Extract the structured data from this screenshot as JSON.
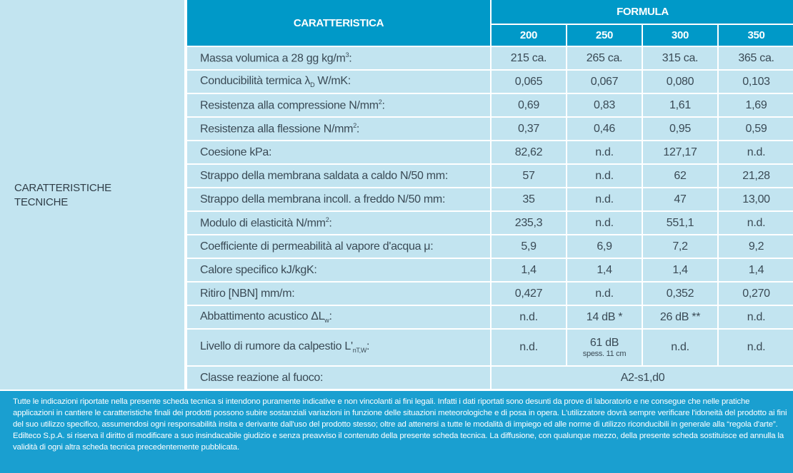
{
  "section_label": "CARATTERISTICHE TECNICHE",
  "header": {
    "characteristic": "CARATTERISTICA",
    "formula": "FORMULA",
    "columns": [
      "200",
      "250",
      "300",
      "350"
    ]
  },
  "rows": [
    {
      "label": "Massa volumica a 28 gg kg/m",
      "sup": "3",
      "sub": "",
      "tail": ":",
      "values": [
        "215 ca.",
        "265 ca.",
        "315 ca.",
        "365 ca."
      ]
    },
    {
      "label": "Conducibilità termica λ",
      "sup": "",
      "sub": "D",
      "tail": " W/mK:",
      "values": [
        "0,065",
        "0,067",
        "0,080",
        "0,103"
      ]
    },
    {
      "label": "Resistenza alla compressione N/mm",
      "sup": "2",
      "sub": "",
      "tail": ":",
      "values": [
        "0,69",
        "0,83",
        "1,61",
        "1,69"
      ]
    },
    {
      "label": "Resistenza alla flessione N/mm",
      "sup": "2",
      "sub": "",
      "tail": ":",
      "values": [
        "0,37",
        "0,46",
        "0,95",
        "0,59"
      ]
    },
    {
      "label": "Coesione kPa:",
      "sup": "",
      "sub": "",
      "tail": "",
      "values": [
        "82,62",
        "n.d.",
        "127,17",
        "n.d."
      ]
    },
    {
      "label": "Strappo della membrana saldata a caldo N/50 mm:",
      "sup": "",
      "sub": "",
      "tail": "",
      "values": [
        "57",
        "n.d.",
        "62",
        "21,28"
      ]
    },
    {
      "label": "Strappo della membrana incoll. a freddo N/50 mm:",
      "sup": "",
      "sub": "",
      "tail": "",
      "values": [
        "35",
        "n.d.",
        "47",
        "13,00"
      ]
    },
    {
      "label": "Modulo di elasticità N/mm",
      "sup": "2",
      "sub": "",
      "tail": ":",
      "values": [
        "235,3",
        "n.d.",
        "551,1",
        "n.d."
      ]
    },
    {
      "label": "Coefficiente di permeabilità al vapore d'acqua μ:",
      "sup": "",
      "sub": "",
      "tail": "",
      "values": [
        "5,9",
        "6,9",
        "7,2",
        "9,2"
      ]
    },
    {
      "label": "Calore specifico kJ/kgK:",
      "sup": "",
      "sub": "",
      "tail": "",
      "values": [
        "1,4",
        "1,4",
        "1,4",
        "1,4"
      ]
    },
    {
      "label": "Ritiro [NBN] mm/m:",
      "sup": "",
      "sub": "",
      "tail": "",
      "values": [
        "0,427",
        "n.d.",
        "0,352",
        "0,270"
      ]
    },
    {
      "label": "Abbattimento acustico ΔL",
      "sup": "",
      "sub": "w",
      "tail": ":",
      "values": [
        "n.d.",
        "14 dB *",
        "26 dB **",
        "n.d."
      ]
    },
    {
      "label": "Livello di rumore da calpestio L'",
      "sup": "",
      "sub": "nT,W",
      "tail": ":",
      "values": [
        "n.d.",
        "61 dB",
        "n.d.",
        "n.d."
      ],
      "note": "spess. 11 cm"
    }
  ],
  "fire": {
    "label": "Classe reazione al fuoco:",
    "value": "A2-s1,d0"
  },
  "footer": "Tutte le indicazioni riportate nella presente scheda tecnica si intendono puramente indicative e non vincolanti ai fini legali. Infatti i dati riportati sono desunti da prove di laboratorio e ne consegue che nelle pratiche applicazioni in cantiere le caratteristiche finali dei prodotti possono subire sostanziali variazioni in funzione delle situazioni meteorologiche e di posa in opera. L'utilizzatore dovrà sempre verificare l'idoneità del prodotto ai fini del suo utilizzo specifico, assumendosi ogni responsabilità insita e derivante dall'uso del prodotto stesso; oltre ad attenersi a tutte le modalità di impiego ed alle norme di utilizzo riconducibili in generale alla “regola d'arte”. Edilteco S.p.A. si riserva il diritto di modificare a suo insindacabile giudizio e senza preavviso il contenuto della presente scheda tecnica. La diffusione, con qualunque mezzo, della presente scheda sostituisce ed annulla la validità di ogni altra scheda tecnica precedentemente pubblicata."
}
